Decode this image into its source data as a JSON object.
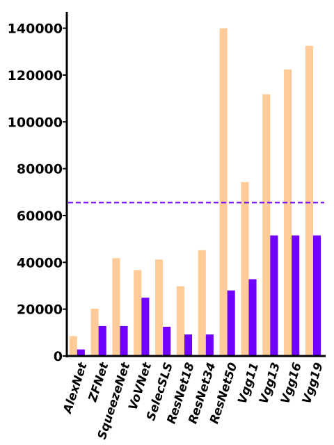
{
  "chart_data": {
    "type": "bar",
    "title": "",
    "xlabel": "",
    "ylabel": "",
    "categories": [
      "AlexNet",
      "ZFNet",
      "SqueezeNet",
      "VoVNet",
      "SelecSLS",
      "ResNet18",
      "ResNet34",
      "ResNet50",
      "Vgg11",
      "Vgg13",
      "Vgg16",
      "Vgg19"
    ],
    "series": [
      {
        "color": "#FFCC99",
        "values": [
          8500,
          20200,
          41800,
          36700,
          41200,
          29800,
          45200,
          140000,
          74300,
          111800,
          122400,
          132500
        ]
      },
      {
        "color": "#7000FF",
        "values": [
          2800,
          12800,
          12800,
          24900,
          12500,
          9200,
          9200,
          28000,
          32800,
          51500,
          51500,
          51500
        ]
      }
    ],
    "reference_line": {
      "y": 65536,
      "color": "#7000FF",
      "style": "dashed"
    },
    "ylim": [
      0,
      147000
    ],
    "yticks": [
      0,
      20000,
      40000,
      60000,
      80000,
      100000,
      120000,
      140000
    ],
    "ytick_labels": [
      "0",
      "20000",
      "40000",
      "60000",
      "80000",
      "100000",
      "120000",
      "140000"
    ],
    "grid": false,
    "legend": "none"
  }
}
